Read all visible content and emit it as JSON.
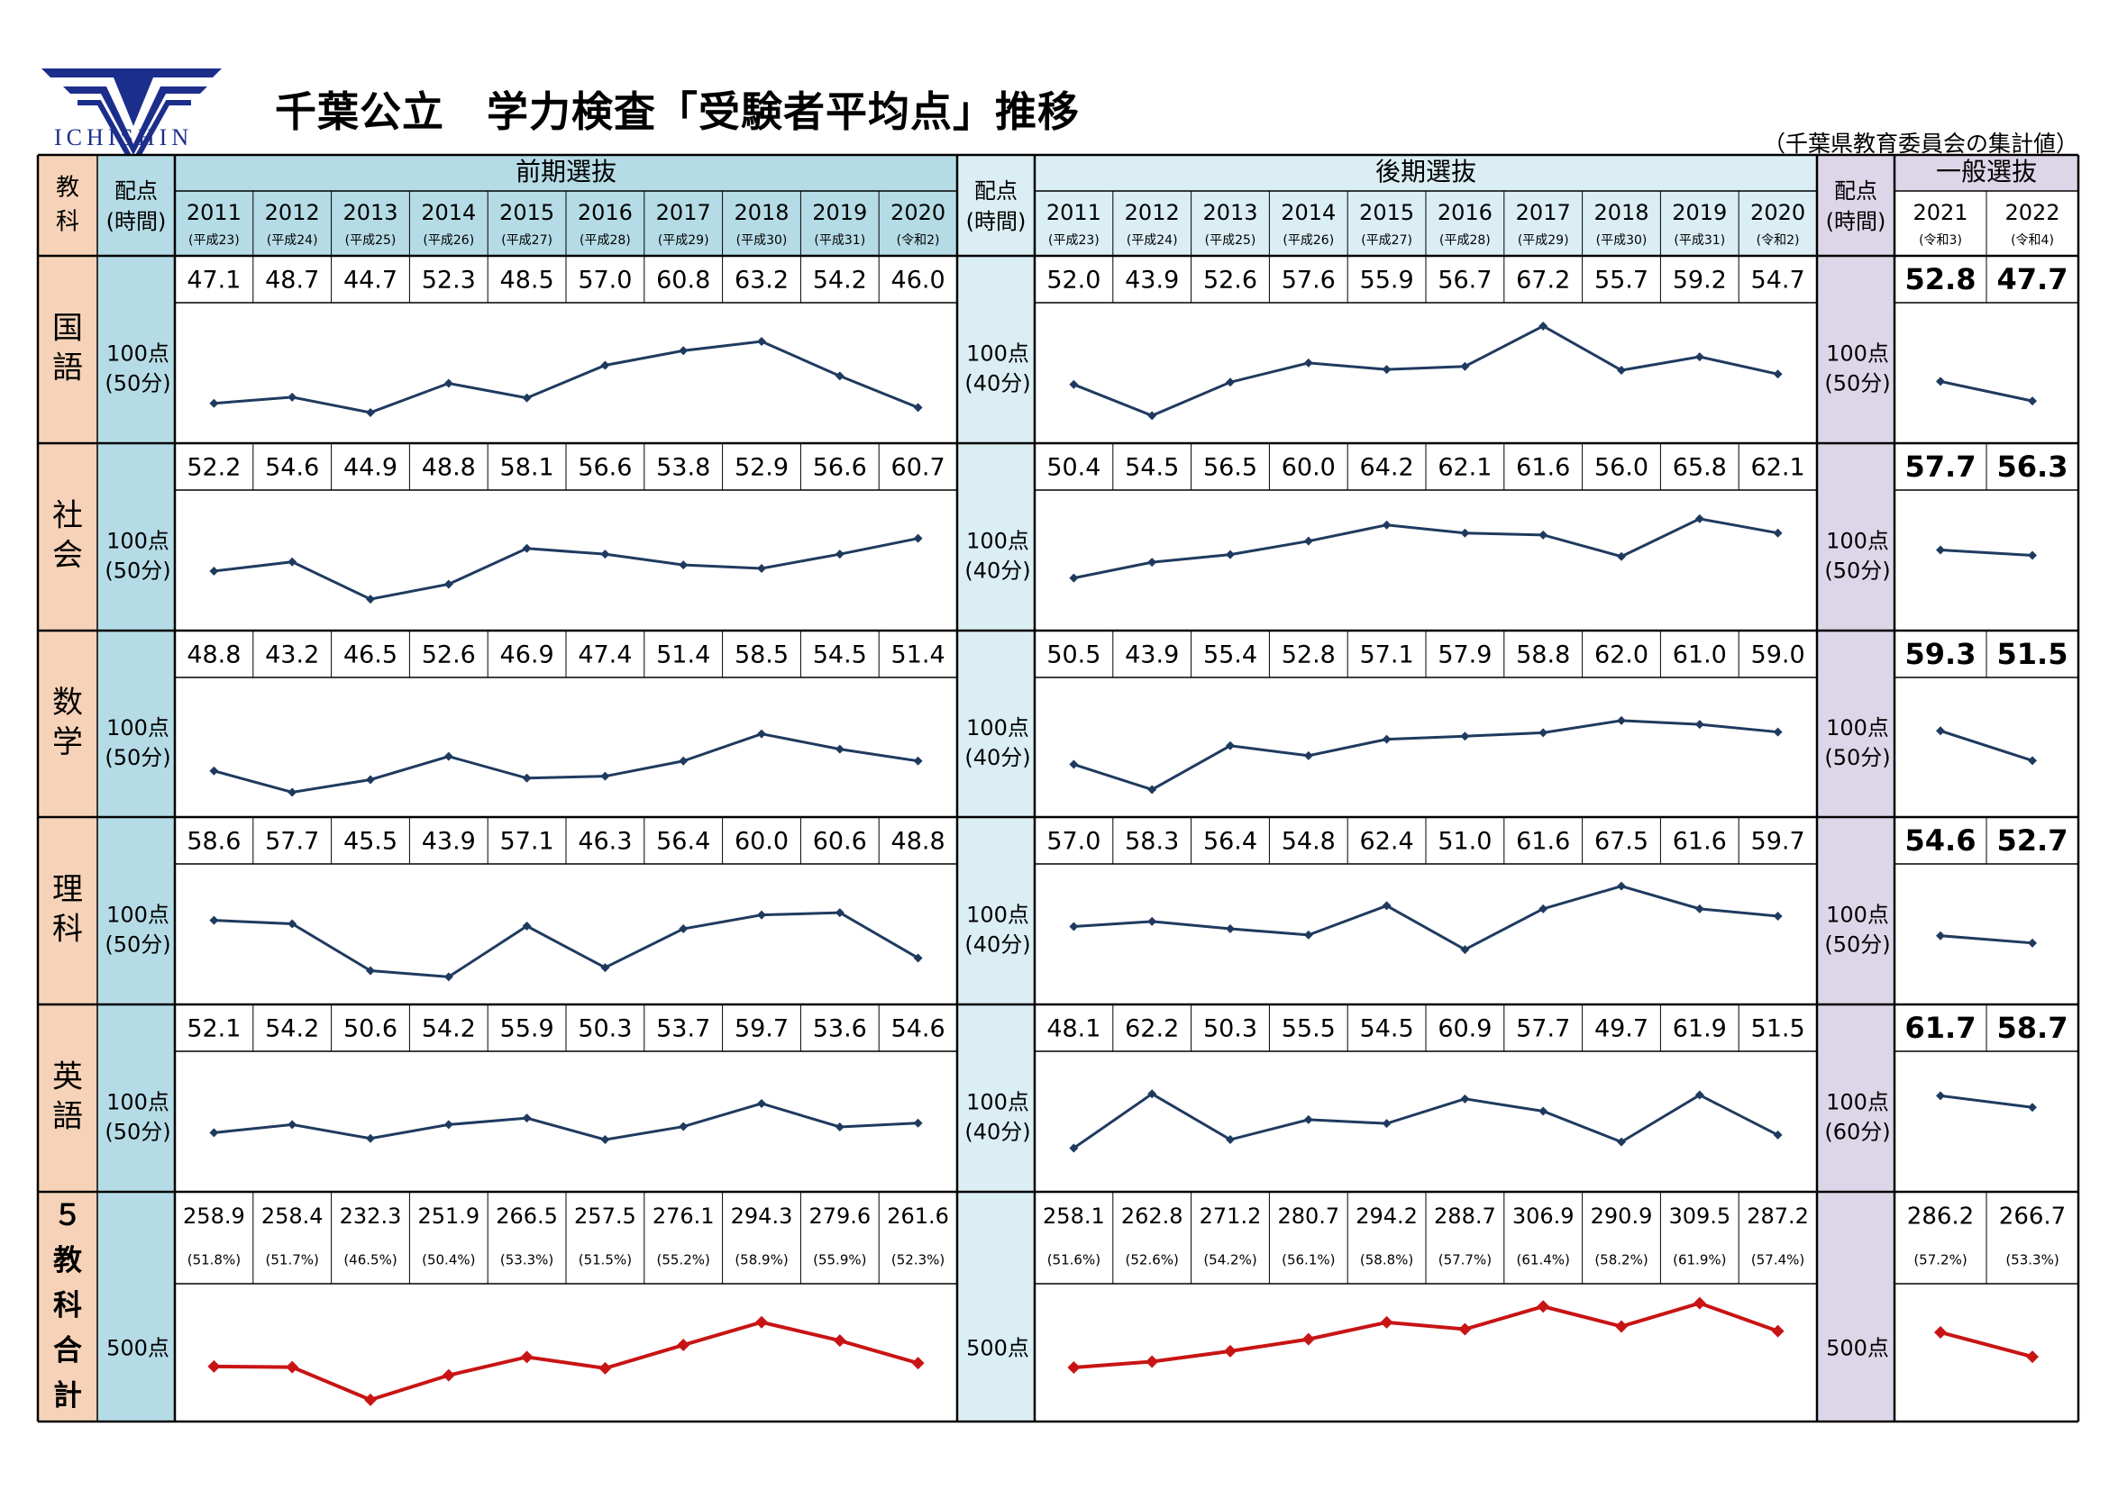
{
  "header": {
    "logo_text": "ICHISHIN",
    "title": "千葉公立　学力検査「受験者平均点」推移",
    "note": "（千葉県教育委員会の集計値）"
  },
  "table": {
    "col_subject": "教科",
    "col_points": "配点\n(時間)",
    "section_early": "前期選抜",
    "section_late": "後期選抜",
    "section_general": "一般選抜"
  },
  "colors": {
    "subject_bg": "#f6d3b8",
    "early_bg": "#b5dce6",
    "late_bg": "#daeef4",
    "general_bg": "#ddd6e8",
    "line": "#1f3a5f",
    "total_line": "#c81414"
  },
  "chart_data": {
    "type": "line",
    "title": "千葉公立　学力検査「受験者平均点」推移",
    "sections": [
      {
        "name": "前期選抜",
        "years": [
          "2011",
          "2012",
          "2013",
          "2014",
          "2015",
          "2016",
          "2017",
          "2018",
          "2019",
          "2020"
        ],
        "eras": [
          "(平成23)",
          "(平成24)",
          "(平成25)",
          "(平成26)",
          "(平成27)",
          "(平成28)",
          "(平成29)",
          "(平成30)",
          "(平成31)",
          "(令和2)"
        ]
      },
      {
        "name": "後期選抜",
        "years": [
          "2011",
          "2012",
          "2013",
          "2014",
          "2015",
          "2016",
          "2017",
          "2018",
          "2019",
          "2020"
        ],
        "eras": [
          "(平成23)",
          "(平成24)",
          "(平成25)",
          "(平成26)",
          "(平成27)",
          "(平成28)",
          "(平成29)",
          "(平成30)",
          "(平成31)",
          "(令和2)"
        ]
      },
      {
        "name": "一般選抜",
        "years": [
          "2021",
          "2022"
        ],
        "eras": [
          "(令和3)",
          "(令和4)"
        ]
      }
    ],
    "rows": [
      {
        "subject": "国\n語",
        "points": [
          "100点\n(50分)",
          "100点\n(40分)",
          "100点\n(50分)"
        ],
        "early": [
          "47.1",
          "48.7",
          "44.7",
          "52.3",
          "48.5",
          "57.0",
          "60.8",
          "63.2",
          "54.2",
          "46.0"
        ],
        "late": [
          "52.0",
          "43.9",
          "52.6",
          "57.6",
          "55.9",
          "56.7",
          "67.2",
          "55.7",
          "59.2",
          "54.7"
        ],
        "general": [
          "52.8",
          "47.7"
        ]
      },
      {
        "subject": "社\n会",
        "points": [
          "100点\n(50分)",
          "100点\n(40分)",
          "100点\n(50分)"
        ],
        "early": [
          "52.2",
          "54.6",
          "44.9",
          "48.8",
          "58.1",
          "56.6",
          "53.8",
          "52.9",
          "56.6",
          "60.7"
        ],
        "late": [
          "50.4",
          "54.5",
          "56.5",
          "60.0",
          "64.2",
          "62.1",
          "61.6",
          "56.0",
          "65.8",
          "62.1"
        ],
        "general": [
          "57.7",
          "56.3"
        ]
      },
      {
        "subject": "数\n学",
        "points": [
          "100点\n(50分)",
          "100点\n(40分)",
          "100点\n(50分)"
        ],
        "early": [
          "48.8",
          "43.2",
          "46.5",
          "52.6",
          "46.9",
          "47.4",
          "51.4",
          "58.5",
          "54.5",
          "51.4"
        ],
        "late": [
          "50.5",
          "43.9",
          "55.4",
          "52.8",
          "57.1",
          "57.9",
          "58.8",
          "62.0",
          "61.0",
          "59.0"
        ],
        "general": [
          "59.3",
          "51.5"
        ]
      },
      {
        "subject": "理\n科",
        "points": [
          "100点\n(50分)",
          "100点\n(40分)",
          "100点\n(50分)"
        ],
        "early": [
          "58.6",
          "57.7",
          "45.5",
          "43.9",
          "57.1",
          "46.3",
          "56.4",
          "60.0",
          "60.6",
          "48.8"
        ],
        "late": [
          "57.0",
          "58.3",
          "56.4",
          "54.8",
          "62.4",
          "51.0",
          "61.6",
          "67.5",
          "61.6",
          "59.7"
        ],
        "general": [
          "54.6",
          "52.7"
        ]
      },
      {
        "subject": "英\n語",
        "points": [
          "100点\n(50分)",
          "100点\n(40分)",
          "100点\n(60分)"
        ],
        "early": [
          "52.1",
          "54.2",
          "50.6",
          "54.2",
          "55.9",
          "50.3",
          "53.7",
          "59.7",
          "53.6",
          "54.6"
        ],
        "late": [
          "48.1",
          "62.2",
          "50.3",
          "55.5",
          "54.5",
          "60.9",
          "57.7",
          "49.7",
          "61.9",
          "51.5"
        ],
        "general": [
          "61.7",
          "58.7"
        ]
      },
      {
        "subject": "５\n教\n科\n合\n計",
        "total": true,
        "points": [
          "500点",
          "500点",
          "500点"
        ],
        "early": [
          "258.9",
          "258.4",
          "232.3",
          "251.9",
          "266.5",
          "257.5",
          "276.1",
          "294.3",
          "279.6",
          "261.6"
        ],
        "early_pct": [
          "(51.8%)",
          "(51.7%)",
          "(46.5%)",
          "(50.4%)",
          "(53.3%)",
          "(51.5%)",
          "(55.2%)",
          "(58.9%)",
          "(55.9%)",
          "(52.3%)"
        ],
        "late": [
          "258.1",
          "262.8",
          "271.2",
          "280.7",
          "294.2",
          "288.7",
          "306.9",
          "290.9",
          "309.5",
          "287.2"
        ],
        "late_pct": [
          "(51.6%)",
          "(52.6%)",
          "(54.2%)",
          "(56.1%)",
          "(58.8%)",
          "(57.7%)",
          "(61.4%)",
          "(58.2%)",
          "(61.9%)",
          "(57.4%)"
        ],
        "general": [
          "286.2",
          "266.7"
        ],
        "general_pct": [
          "(57.2%)",
          "(53.3%)"
        ]
      }
    ],
    "subject_ylim": [
      40,
      70
    ],
    "total_ylim": [
      225,
      315
    ],
    "grid": false
  }
}
